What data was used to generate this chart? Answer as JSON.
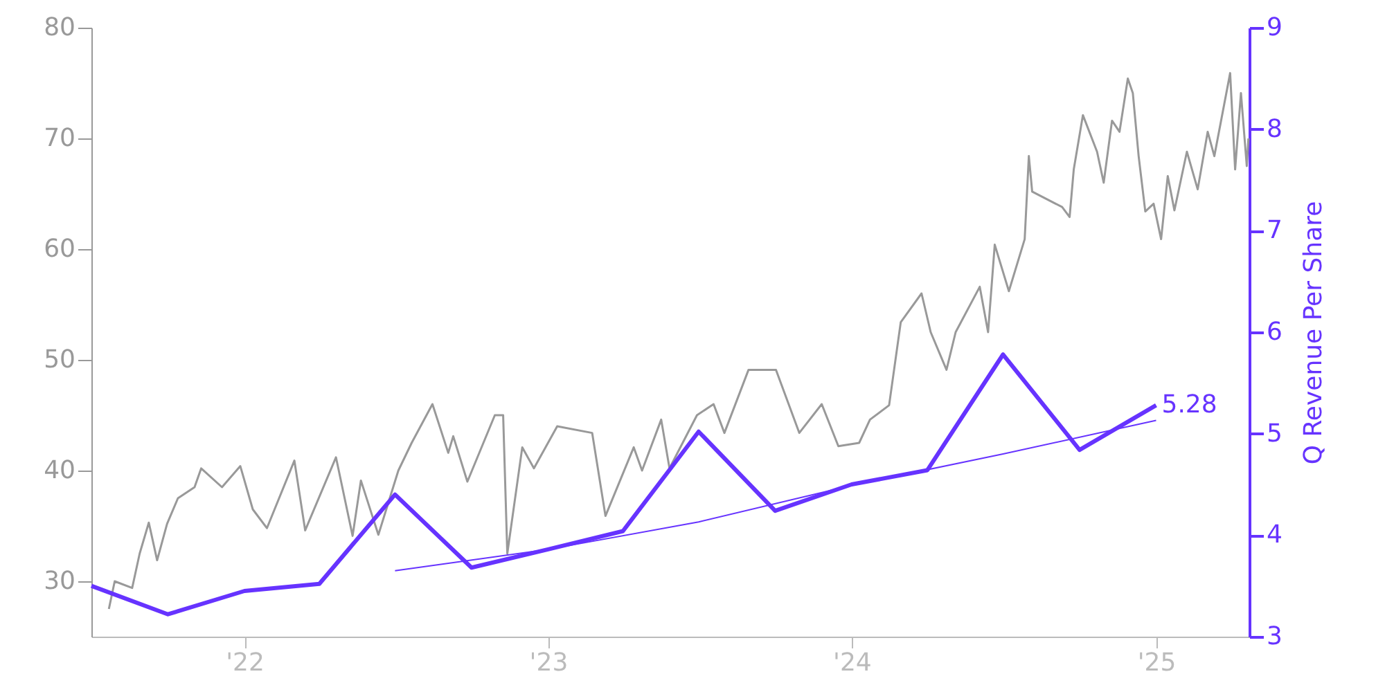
{
  "chart_data": {
    "type": "line",
    "y2label": "Q Revenue Per Share",
    "xlim": [
      "2021-07-01",
      "2025-04-23"
    ],
    "xticks": [
      {
        "value": "2022-01-01",
        "label": "'22"
      },
      {
        "value": "2023-01-01",
        "label": "'23"
      },
      {
        "value": "2024-01-01",
        "label": "'24"
      },
      {
        "value": "2025-01-01",
        "label": "'25"
      }
    ],
    "ylim": [
      25,
      80
    ],
    "yticks": [
      30,
      40,
      50,
      60,
      70,
      80
    ],
    "y2lim": [
      3,
      9
    ],
    "y2ticks": [
      3,
      4,
      5,
      6,
      7,
      8,
      9
    ],
    "grid": false,
    "marker": "none",
    "series": [
      {
        "color": "#999999",
        "x": [
          "2021-07-22",
          "2021-07-29",
          "2021-08-19",
          "2021-08-28",
          "2021-09-08",
          "2021-09-18",
          "2021-09-30",
          "2021-10-13",
          "2021-11-02",
          "2021-11-10",
          "2021-12-05",
          "2021-12-27",
          "2022-01-11",
          "2022-01-28",
          "2022-03-02",
          "2022-03-15",
          "2022-04-21",
          "2022-05-11",
          "2022-05-21",
          "2022-06-11",
          "2022-07-05",
          "2022-07-21",
          "2022-08-15",
          "2022-09-03",
          "2022-09-09",
          "2022-09-26",
          "2022-10-29",
          "2022-11-08",
          "2022-11-13",
          "2022-12-01",
          "2022-12-15",
          "2023-01-12",
          "2023-02-23",
          "2023-03-11",
          "2023-04-14",
          "2023-04-24",
          "2023-05-17",
          "2023-05-27",
          "2023-06-29",
          "2023-07-19",
          "2023-08-01",
          "2023-08-30",
          "2023-10-02",
          "2023-10-30",
          "2023-11-26",
          "2023-12-16",
          "2024-01-10",
          "2024-01-23",
          "2024-02-15",
          "2024-02-29",
          "2024-03-25",
          "2024-04-05",
          "2024-04-24",
          "2024-05-05",
          "2024-06-03",
          "2024-06-13",
          "2024-06-21",
          "2024-07-08",
          "2024-07-27",
          "2024-08-01",
          "2024-08-05",
          "2024-09-10",
          "2024-09-19",
          "2024-09-24",
          "2024-10-05",
          "2024-10-22",
          "2024-10-30",
          "2024-11-09",
          "2024-11-18",
          "2024-11-28",
          "2024-12-04",
          "2024-12-11",
          "2024-12-19",
          "2024-12-29",
          "2025-01-07",
          "2025-01-15",
          "2025-01-23",
          "2025-02-07",
          "2025-02-20",
          "2025-03-04",
          "2025-03-12",
          "2025-03-31",
          "2025-04-06",
          "2025-04-13",
          "2025-04-20",
          "2025-04-22"
        ],
        "values": [
          27.5,
          30,
          29.4,
          32.5,
          35.3,
          31.9,
          35.2,
          37.5,
          38.5,
          40.2,
          38.5,
          40.4,
          36.5,
          34.8,
          40.9,
          34.6,
          41.2,
          34.1,
          39.1,
          34.2,
          40,
          42.5,
          46,
          41.6,
          43.1,
          39,
          45,
          45,
          32.5,
          42.1,
          40.2,
          44,
          43.4,
          35.9,
          42.1,
          40,
          44.6,
          40.2,
          45,
          46,
          43.4,
          49.1,
          49.1,
          43.4,
          46,
          42.2,
          42.5,
          44.6,
          45.9,
          53.4,
          56,
          52.5,
          49.1,
          52.5,
          56.6,
          52.5,
          60.4,
          56.2,
          60.9,
          68.4,
          65.2,
          63.8,
          62.9,
          67.2,
          72.1,
          68.8,
          66,
          71.6,
          70.6,
          75.4,
          74.1,
          68.4,
          63.4,
          64.1,
          60.9,
          66.6,
          63.5,
          68.8,
          65.4,
          70.6,
          68.4,
          75.9,
          67.2,
          74.1,
          67.5,
          70
        ]
      },
      {
        "color": "#6633ff",
        "axis": "y2",
        "x": [
          "2021-07-01",
          "2021-10-01",
          "2022-01-01",
          "2022-04-01",
          "2022-07-01",
          "2022-10-01",
          "2023-01-01",
          "2023-04-01",
          "2023-07-01",
          "2023-10-01",
          "2024-01-01",
          "2024-04-01",
          "2024-07-01",
          "2024-10-01",
          "2025-01-01"
        ],
        "values": [
          3.5,
          3.22,
          3.45,
          3.52,
          4.4,
          3.68,
          3.86,
          4.04,
          5.02,
          4.24,
          4.5,
          4.64,
          5.78,
          4.84,
          5.28
        ],
        "value_labels": [
          null,
          null,
          null,
          null,
          null,
          null,
          null,
          null,
          null,
          null,
          null,
          null,
          null,
          null,
          "5.28"
        ]
      },
      {
        "color": "#6633ff",
        "axis": "y2",
        "type": "line",
        "x": [
          "2022-07-01",
          "2023-01-01",
          "2023-07-01",
          "2024-01-01",
          "2024-07-01",
          "2025-01-01"
        ],
        "values": [
          3.65,
          3.86,
          4.13,
          4.49,
          4.8,
          5.13
        ]
      }
    ]
  }
}
